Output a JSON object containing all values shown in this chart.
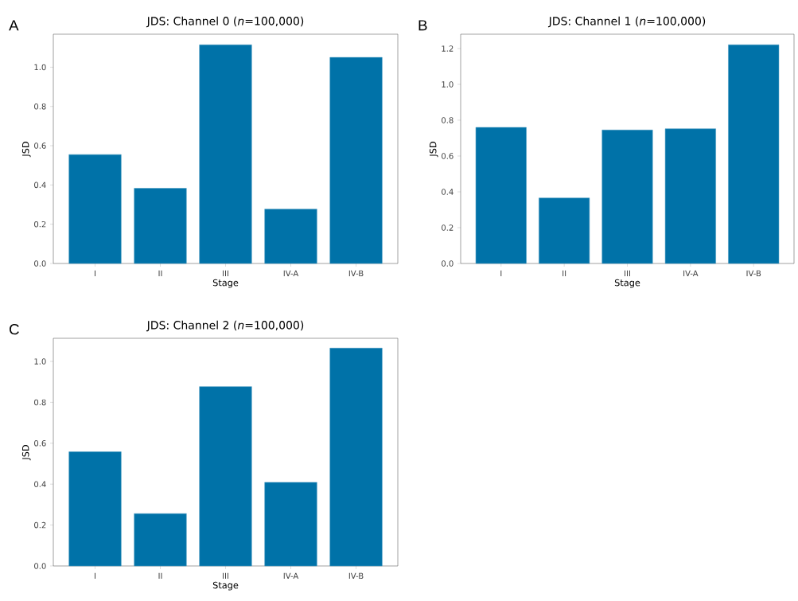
{
  "chart_data": [
    {
      "type": "bar",
      "title": "JDS: Channel 0 (*n*=100,000)",
      "annotations": [
        "A"
      ],
      "xlabel": "Stage",
      "ylabel": "JSD",
      "categories": [
        "I",
        "II",
        "III",
        "IV-A",
        "IV-B"
      ],
      "values": [
        0.555,
        0.383,
        1.114,
        0.277,
        1.05
      ],
      "color": "#0072a8",
      "ylim": [
        0,
        1.168
      ],
      "yticks": [
        {
          "value": 0,
          "label": "0.0"
        },
        {
          "value": 0.2,
          "label": "0.2"
        },
        {
          "value": 0.4,
          "label": "0.4"
        },
        {
          "value": 0.6,
          "label": "0.6"
        },
        {
          "value": 0.8,
          "label": "0.8"
        },
        {
          "value": 1.0,
          "label": "1.0"
        }
      ],
      "grid": false
    },
    {
      "type": "bar",
      "title": "JDS: Channel 1 (*n*=100,000)",
      "annotations": [
        "B"
      ],
      "xlabel": "Stage",
      "ylabel": "JSD",
      "categories": [
        "I",
        "II",
        "III",
        "IV-A",
        "IV-B"
      ],
      "values": [
        0.76,
        0.366,
        0.745,
        0.752,
        1.221
      ],
      "color": "#0072a8",
      "ylim": [
        0,
        1.28
      ],
      "yticks": [
        {
          "value": 0,
          "label": "0.0"
        },
        {
          "value": 0.2,
          "label": "0.2"
        },
        {
          "value": 0.4,
          "label": "0.4"
        },
        {
          "value": 0.6,
          "label": "0.6"
        },
        {
          "value": 0.8,
          "label": "0.8"
        },
        {
          "value": 1.0,
          "label": "1.0"
        },
        {
          "value": 1.2,
          "label": "1.2"
        }
      ],
      "grid": false
    },
    {
      "type": "bar",
      "title": "JDS: Channel 2 (*n*=100,000)",
      "annotations": [
        "C"
      ],
      "xlabel": "Stage",
      "ylabel": "JSD",
      "categories": [
        "I",
        "II",
        "III",
        "IV-A",
        "IV-B"
      ],
      "values": [
        0.558,
        0.256,
        0.877,
        0.409,
        1.065
      ],
      "color": "#0072a8",
      "ylim": [
        0,
        1.113
      ],
      "yticks": [
        {
          "value": 0,
          "label": "0.0"
        },
        {
          "value": 0.2,
          "label": "0.2"
        },
        {
          "value": 0.4,
          "label": "0.4"
        },
        {
          "value": 0.6,
          "label": "0.6"
        },
        {
          "value": 0.8,
          "label": "0.8"
        },
        {
          "value": 1.0,
          "label": "1.0"
        }
      ],
      "grid": false
    }
  ]
}
